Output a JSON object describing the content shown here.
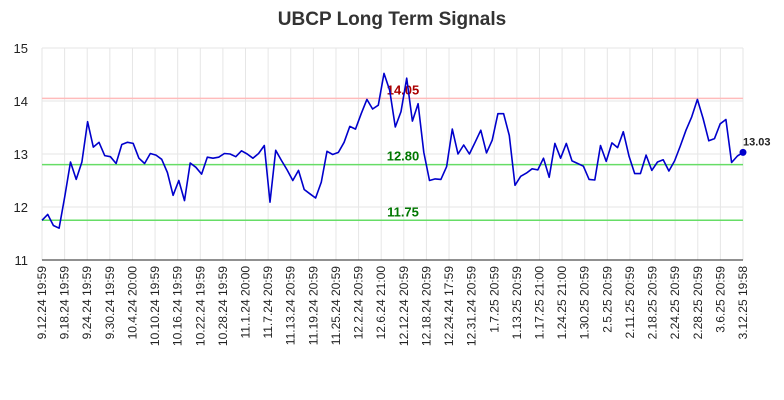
{
  "chart_data": {
    "type": "line",
    "title": "UBCP Long Term Signals",
    "ylim": [
      11,
      15
    ],
    "yticks": [
      "11",
      "12",
      "13",
      "14",
      "15"
    ],
    "grid": true,
    "xtick_labels": [
      "9.12.24 19:59",
      "9.18.24 19:59",
      "9.24.24 19:59",
      "9.30.24 19:59",
      "10.4.24 20:00",
      "10.10.24 19:59",
      "10.16.24 19:59",
      "10.22.24 19:59",
      "10.28.24 19:59",
      "11.1.24 20:00",
      "11.7.24 20:59",
      "11.13.24 20:59",
      "11.19.24 20:59",
      "11.25.24 20:59",
      "12.2.24 20:59",
      "12.6.24 21:00",
      "12.12.24 20:59",
      "12.18.24 20:59",
      "12.24.24 17:59",
      "12.31.24 20:59",
      "1.7.25 20:59",
      "1.13.25 20:59",
      "1.17.25 21:00",
      "1.24.25 21:00",
      "1.30.25 20:59",
      "2.5.25 20:59",
      "2.11.25 20:59",
      "2.18.25 20:59",
      "2.24.25 20:59",
      "2.28.25 20:59",
      "3.6.25 20:59",
      "3.12.25 19:58"
    ],
    "series": [
      {
        "color": "#0000cc",
        "values": [
          11.75,
          11.86,
          11.65,
          11.6,
          12.2,
          12.85,
          12.52,
          12.85,
          13.61,
          13.13,
          13.22,
          12.97,
          12.95,
          12.82,
          13.18,
          13.22,
          13.2,
          12.92,
          12.82,
          13.01,
          12.98,
          12.9,
          12.65,
          12.22,
          12.5,
          12.12,
          12.83,
          12.75,
          12.62,
          12.94,
          12.92,
          12.94,
          13.01,
          13.0,
          12.95,
          13.06,
          13.0,
          12.92,
          13.01,
          13.16,
          12.09,
          13.07,
          12.88,
          12.7,
          12.5,
          12.69,
          12.33,
          12.25,
          12.17,
          12.47,
          13.05,
          12.99,
          13.03,
          13.22,
          13.52,
          13.47,
          13.76,
          14.03,
          13.85,
          13.92,
          14.52,
          14.2,
          13.51,
          13.8,
          14.43,
          13.62,
          13.95,
          13.03,
          12.5,
          12.53,
          12.52,
          12.76,
          13.47,
          13.0,
          13.17,
          13.0,
          13.22,
          13.45,
          13.02,
          13.26,
          13.76,
          13.76,
          13.35,
          12.41,
          12.58,
          12.64,
          12.72,
          12.7,
          12.92,
          12.56,
          13.2,
          12.92,
          13.2,
          12.87,
          12.82,
          12.77,
          12.52,
          12.51,
          13.16,
          12.86,
          13.21,
          13.12,
          13.42,
          12.96,
          12.63,
          12.63,
          12.98,
          12.69,
          12.85,
          12.89,
          12.68,
          12.87,
          13.15,
          13.45,
          13.7,
          14.03,
          13.67,
          13.25,
          13.29,
          13.57,
          13.65,
          12.84,
          12.96,
          13.03
        ]
      }
    ],
    "levels": [
      {
        "value": 14.05,
        "label": "14.05",
        "line_color": "#ffbbbb",
        "text_color": "#aa0000"
      },
      {
        "value": 12.8,
        "label": "12.80",
        "line_color": "#66dd66",
        "text_color": "#007700"
      },
      {
        "value": 11.75,
        "label": "11.75",
        "line_color": "#66dd66",
        "text_color": "#007700"
      }
    ],
    "last_value_label": "13.03"
  }
}
